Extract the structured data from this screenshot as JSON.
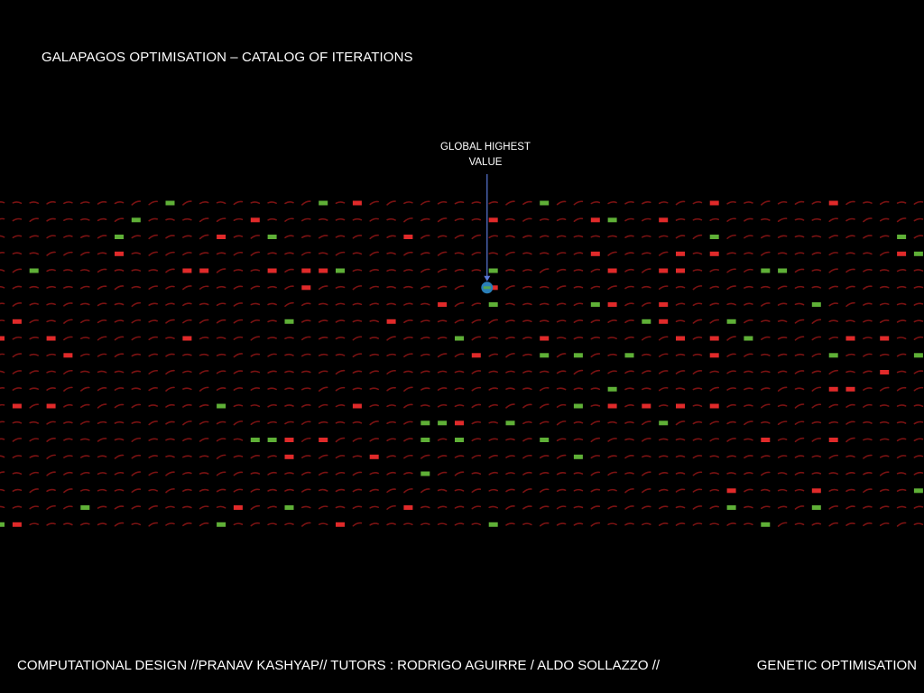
{
  "slide": {
    "title": "GALAPAGOS OPTIMISATION – CATALOG OF ITERATIONS"
  },
  "annotation": {
    "line1": "GLOBAL HIGHEST",
    "line2": "VALUE"
  },
  "footer": {
    "left": "COMPUTATIONAL DESIGN  //PRANAV KASHYAP// TUTORS : RODRIGO AGUIRRE / ALDO SOLLAZZO //",
    "right": "GENETIC OPTIMISATION"
  },
  "colors": {
    "background": "#000000",
    "iteration_default": "#7a1212",
    "iteration_low": "#e02a2a",
    "iteration_high": "#5fb037",
    "global_best": "#2a7fb8",
    "arrow": "#5a78d8"
  },
  "catalog": {
    "rows": 20,
    "columns": 55,
    "highlighted_low_count": 64,
    "highlighted_high_count": 51,
    "global_best": {
      "row": 5,
      "column": 28
    }
  }
}
